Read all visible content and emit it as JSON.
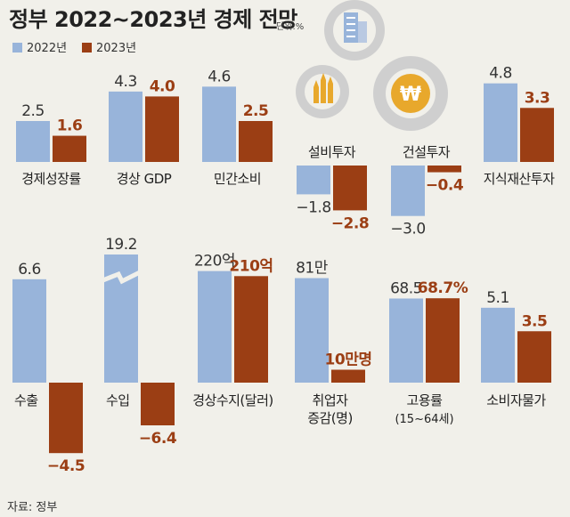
{
  "header": {
    "title": "정부 2022~2023년 경제 전망",
    "unit": "단위:%"
  },
  "legend": {
    "items": [
      {
        "label": "2022년",
        "color": "#98b4da"
      },
      {
        "label": "2023년",
        "color": "#9b3e14"
      }
    ]
  },
  "source": "자료: 정부",
  "colors": {
    "series_2022": "#98b4da",
    "series_2023": "#9b3e14",
    "background": "#f1f0ea"
  },
  "icons": [
    "gear-building-icon",
    "gear-arrows-icon",
    "gear-won-icon"
  ],
  "chart_data": {
    "type": "bar",
    "series": [
      {
        "name": "2022년"
      },
      {
        "name": "2023년"
      }
    ],
    "panels": [
      {
        "category": "경제성장률",
        "values": [
          2.5,
          1.6
        ],
        "labels": [
          "2.5",
          "1.6"
        ]
      },
      {
        "category": "경상 GDP",
        "values": [
          4.3,
          4.0
        ],
        "labels": [
          "4.3",
          "4.0"
        ]
      },
      {
        "category": "민간소비",
        "values": [
          4.6,
          2.5
        ],
        "labels": [
          "4.6",
          "2.5"
        ]
      },
      {
        "category": "설비투자",
        "values": [
          -1.8,
          -2.8
        ],
        "labels": [
          "−1.8",
          "−2.8"
        ]
      },
      {
        "category": "건설투자",
        "values": [
          -3.0,
          -0.4
        ],
        "labels": [
          "−3.0",
          "−0.4"
        ]
      },
      {
        "category": "지식재산투자",
        "values": [
          4.8,
          3.3
        ],
        "labels": [
          "4.8",
          "3.3"
        ]
      },
      {
        "category": "수출",
        "values": [
          6.6,
          -4.5
        ],
        "labels": [
          "6.6",
          "−4.5"
        ]
      },
      {
        "category": "수입",
        "values": [
          19.2,
          -6.4
        ],
        "labels": [
          "19.2",
          "−6.4"
        ],
        "axis_break": true
      },
      {
        "category": "경상수지(달러)",
        "values": [
          220,
          210
        ],
        "labels": [
          "220억",
          "210억"
        ],
        "value_unit": "억 달러"
      },
      {
        "category": "취업자 증감(명)",
        "category_lines": [
          "취업자",
          "증감(명)"
        ],
        "values": [
          81,
          10
        ],
        "labels": [
          "81만",
          "10만명"
        ],
        "value_unit": "만 명"
      },
      {
        "category": "고용률 (15~64세)",
        "category_lines": [
          "고용률",
          "(15~64세)"
        ],
        "values": [
          68.5,
          68.7
        ],
        "labels": [
          "68.5",
          "68.7%"
        ]
      },
      {
        "category": "소비자물가",
        "values": [
          5.1,
          3.5
        ],
        "labels": [
          "5.1",
          "3.5"
        ]
      }
    ]
  }
}
